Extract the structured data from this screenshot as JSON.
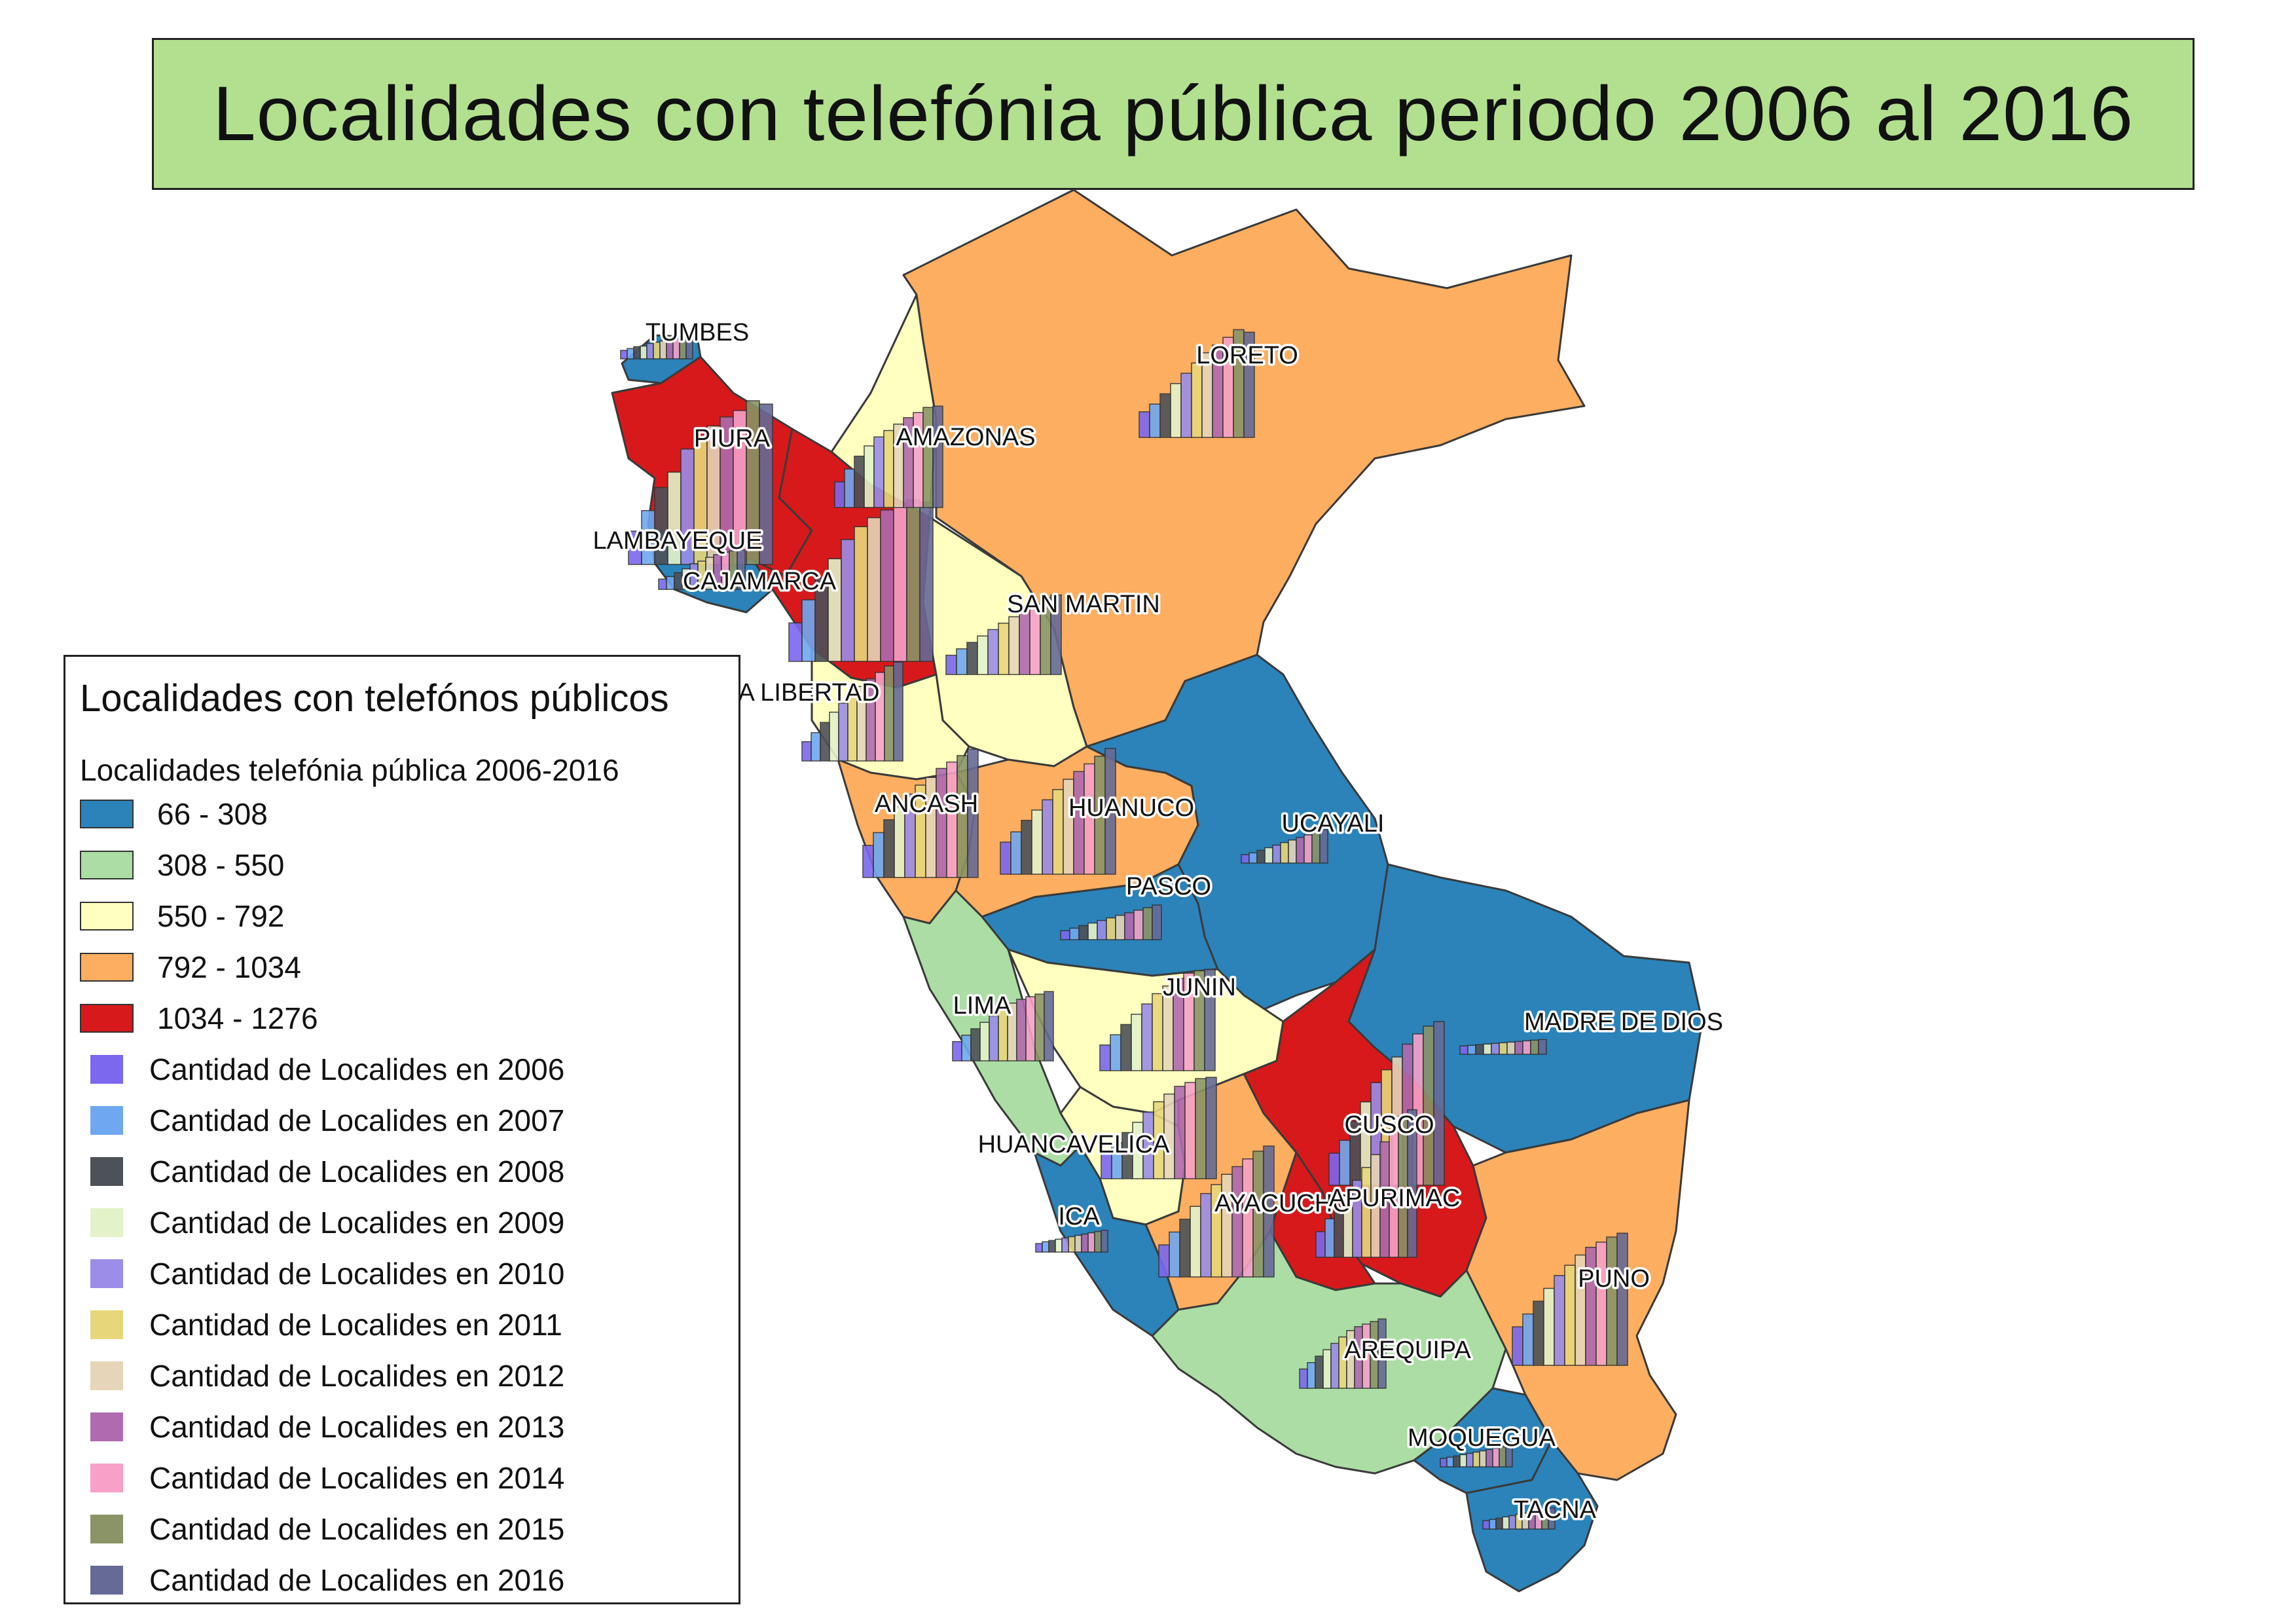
{
  "title": "Localidades con telefónia pública periodo 2006 al 2016",
  "legend": {
    "title": "Localidades con telefónos públicos",
    "subtitle": "Localidades telefónia pública 2006-2016",
    "ranges": [
      {
        "label": "66 - 308",
        "color": "#2b83ba"
      },
      {
        "label": "308 - 550",
        "color": "#abdda4"
      },
      {
        "label": "550 - 792",
        "color": "#ffffbf"
      },
      {
        "label": "792 - 1034",
        "color": "#fdae61"
      },
      {
        "label": "1034 - 1276",
        "color": "#d7191c"
      }
    ],
    "years": [
      {
        "label": "Cantidad de Localides en 2006",
        "color": "#7b68ee"
      },
      {
        "label": "Cantidad de Localides en 2007",
        "color": "#6fa8f0"
      },
      {
        "label": "Cantidad de Localides en 2008",
        "color": "#4d5158"
      },
      {
        "label": "Cantidad de Localides en 2009",
        "color": "#e3f2c9"
      },
      {
        "label": "Cantidad de Localides en 2010",
        "color": "#9b8de8"
      },
      {
        "label": "Cantidad de Localides en 2011",
        "color": "#e8d77a"
      },
      {
        "label": "Cantidad de Localides en 2012",
        "color": "#e6d5b8"
      },
      {
        "label": "Cantidad de Localides en 2013",
        "color": "#b06aaf"
      },
      {
        "label": "Cantidad de Localides en 2014",
        "color": "#f7a1c8"
      },
      {
        "label": "Cantidad de Localides en 2015",
        "color": "#8a9466"
      },
      {
        "label": "Cantidad de Localides en 2016",
        "color": "#666a96"
      }
    ]
  },
  "departments": [
    {
      "name": "TUMBES",
      "range": 0,
      "bars": [
        66,
        80,
        95,
        100,
        120,
        130,
        140,
        150,
        155,
        160,
        150
      ]
    },
    {
      "name": "PIURA",
      "range": 4,
      "bars": [
        260,
        420,
        600,
        720,
        900,
        1000,
        1080,
        1150,
        1200,
        1276,
        1250
      ]
    },
    {
      "name": "LAMBAYEQUE",
      "range": 0,
      "bars": [
        80,
        100,
        130,
        160,
        200,
        220,
        250,
        270,
        290,
        300,
        308
      ]
    },
    {
      "name": "CAJAMARCA",
      "range": 4,
      "bars": [
        300,
        480,
        650,
        800,
        950,
        1050,
        1120,
        1180,
        1220,
        1260,
        1240
      ]
    },
    {
      "name": "AMAZONAS",
      "range": 2,
      "bars": [
        200,
        300,
        400,
        480,
        550,
        600,
        650,
        700,
        740,
        780,
        790
      ]
    },
    {
      "name": "LORETO",
      "range": 3,
      "bars": [
        200,
        260,
        340,
        420,
        500,
        580,
        660,
        720,
        780,
        840,
        820
      ]
    },
    {
      "name": "SAN MARTIN",
      "range": 2,
      "bars": [
        150,
        200,
        250,
        300,
        350,
        400,
        450,
        500,
        550,
        600,
        620
      ]
    },
    {
      "name": "LA LIBERTAD",
      "range": 2,
      "bars": [
        150,
        220,
        300,
        380,
        450,
        520,
        580,
        640,
        690,
        740,
        770
      ]
    },
    {
      "name": "ANCASH",
      "range": 3,
      "bars": [
        250,
        350,
        450,
        550,
        650,
        720,
        780,
        850,
        900,
        950,
        1000
      ]
    },
    {
      "name": "HUANUCO",
      "range": 3,
      "bars": [
        250,
        330,
        420,
        500,
        580,
        660,
        740,
        800,
        860,
        920,
        980
      ]
    },
    {
      "name": "UCAYALI",
      "range": 0,
      "bars": [
        66,
        80,
        100,
        120,
        140,
        160,
        180,
        200,
        220,
        240,
        260
      ]
    },
    {
      "name": "PASCO",
      "range": 0,
      "bars": [
        70,
        90,
        110,
        130,
        150,
        170,
        190,
        210,
        230,
        250,
        270
      ]
    },
    {
      "name": "LIMA",
      "range": 1,
      "bars": [
        150,
        200,
        250,
        300,
        350,
        400,
        450,
        480,
        500,
        520,
        540
      ]
    },
    {
      "name": "JUNIN",
      "range": 2,
      "bars": [
        200,
        280,
        360,
        440,
        520,
        600,
        660,
        720,
        760,
        780,
        790
      ]
    },
    {
      "name": "MADRE DE DIOS",
      "range": 0,
      "bars": [
        66,
        70,
        75,
        80,
        85,
        90,
        95,
        100,
        105,
        110,
        115
      ]
    },
    {
      "name": "HUANCAVELICA",
      "range": 2,
      "bars": [
        200,
        280,
        360,
        440,
        520,
        600,
        660,
        720,
        750,
        780,
        790
      ]
    },
    {
      "name": "CUSCO",
      "range": 4,
      "bars": [
        250,
        350,
        500,
        650,
        800,
        900,
        1000,
        1100,
        1180,
        1240,
        1276
      ]
    },
    {
      "name": "ICA",
      "range": 0,
      "bars": [
        66,
        80,
        90,
        100,
        110,
        120,
        130,
        140,
        150,
        160,
        170
      ]
    },
    {
      "name": "AYACUCHO",
      "range": 3,
      "bars": [
        250,
        350,
        450,
        550,
        650,
        720,
        800,
        860,
        920,
        980,
        1020
      ]
    },
    {
      "name": "APURIMAC",
      "range": 4,
      "bars": [
        200,
        300,
        400,
        500,
        600,
        700,
        800,
        900,
        1000,
        1100,
        1150
      ]
    },
    {
      "name": "PUNO",
      "range": 3,
      "bars": [
        300,
        400,
        500,
        600,
        700,
        780,
        860,
        920,
        960,
        1000,
        1030
      ]
    },
    {
      "name": "AREQUIPA",
      "range": 1,
      "bars": [
        150,
        200,
        250,
        300,
        350,
        400,
        450,
        480,
        500,
        520,
        540
      ]
    },
    {
      "name": "MOQUEGUA",
      "range": 0,
      "bars": [
        66,
        75,
        85,
        95,
        105,
        115,
        125,
        135,
        145,
        155,
        165
      ]
    },
    {
      "name": "TACNA",
      "range": 0,
      "bars": [
        66,
        75,
        85,
        95,
        105,
        115,
        125,
        135,
        145,
        155,
        165
      ]
    }
  ]
}
